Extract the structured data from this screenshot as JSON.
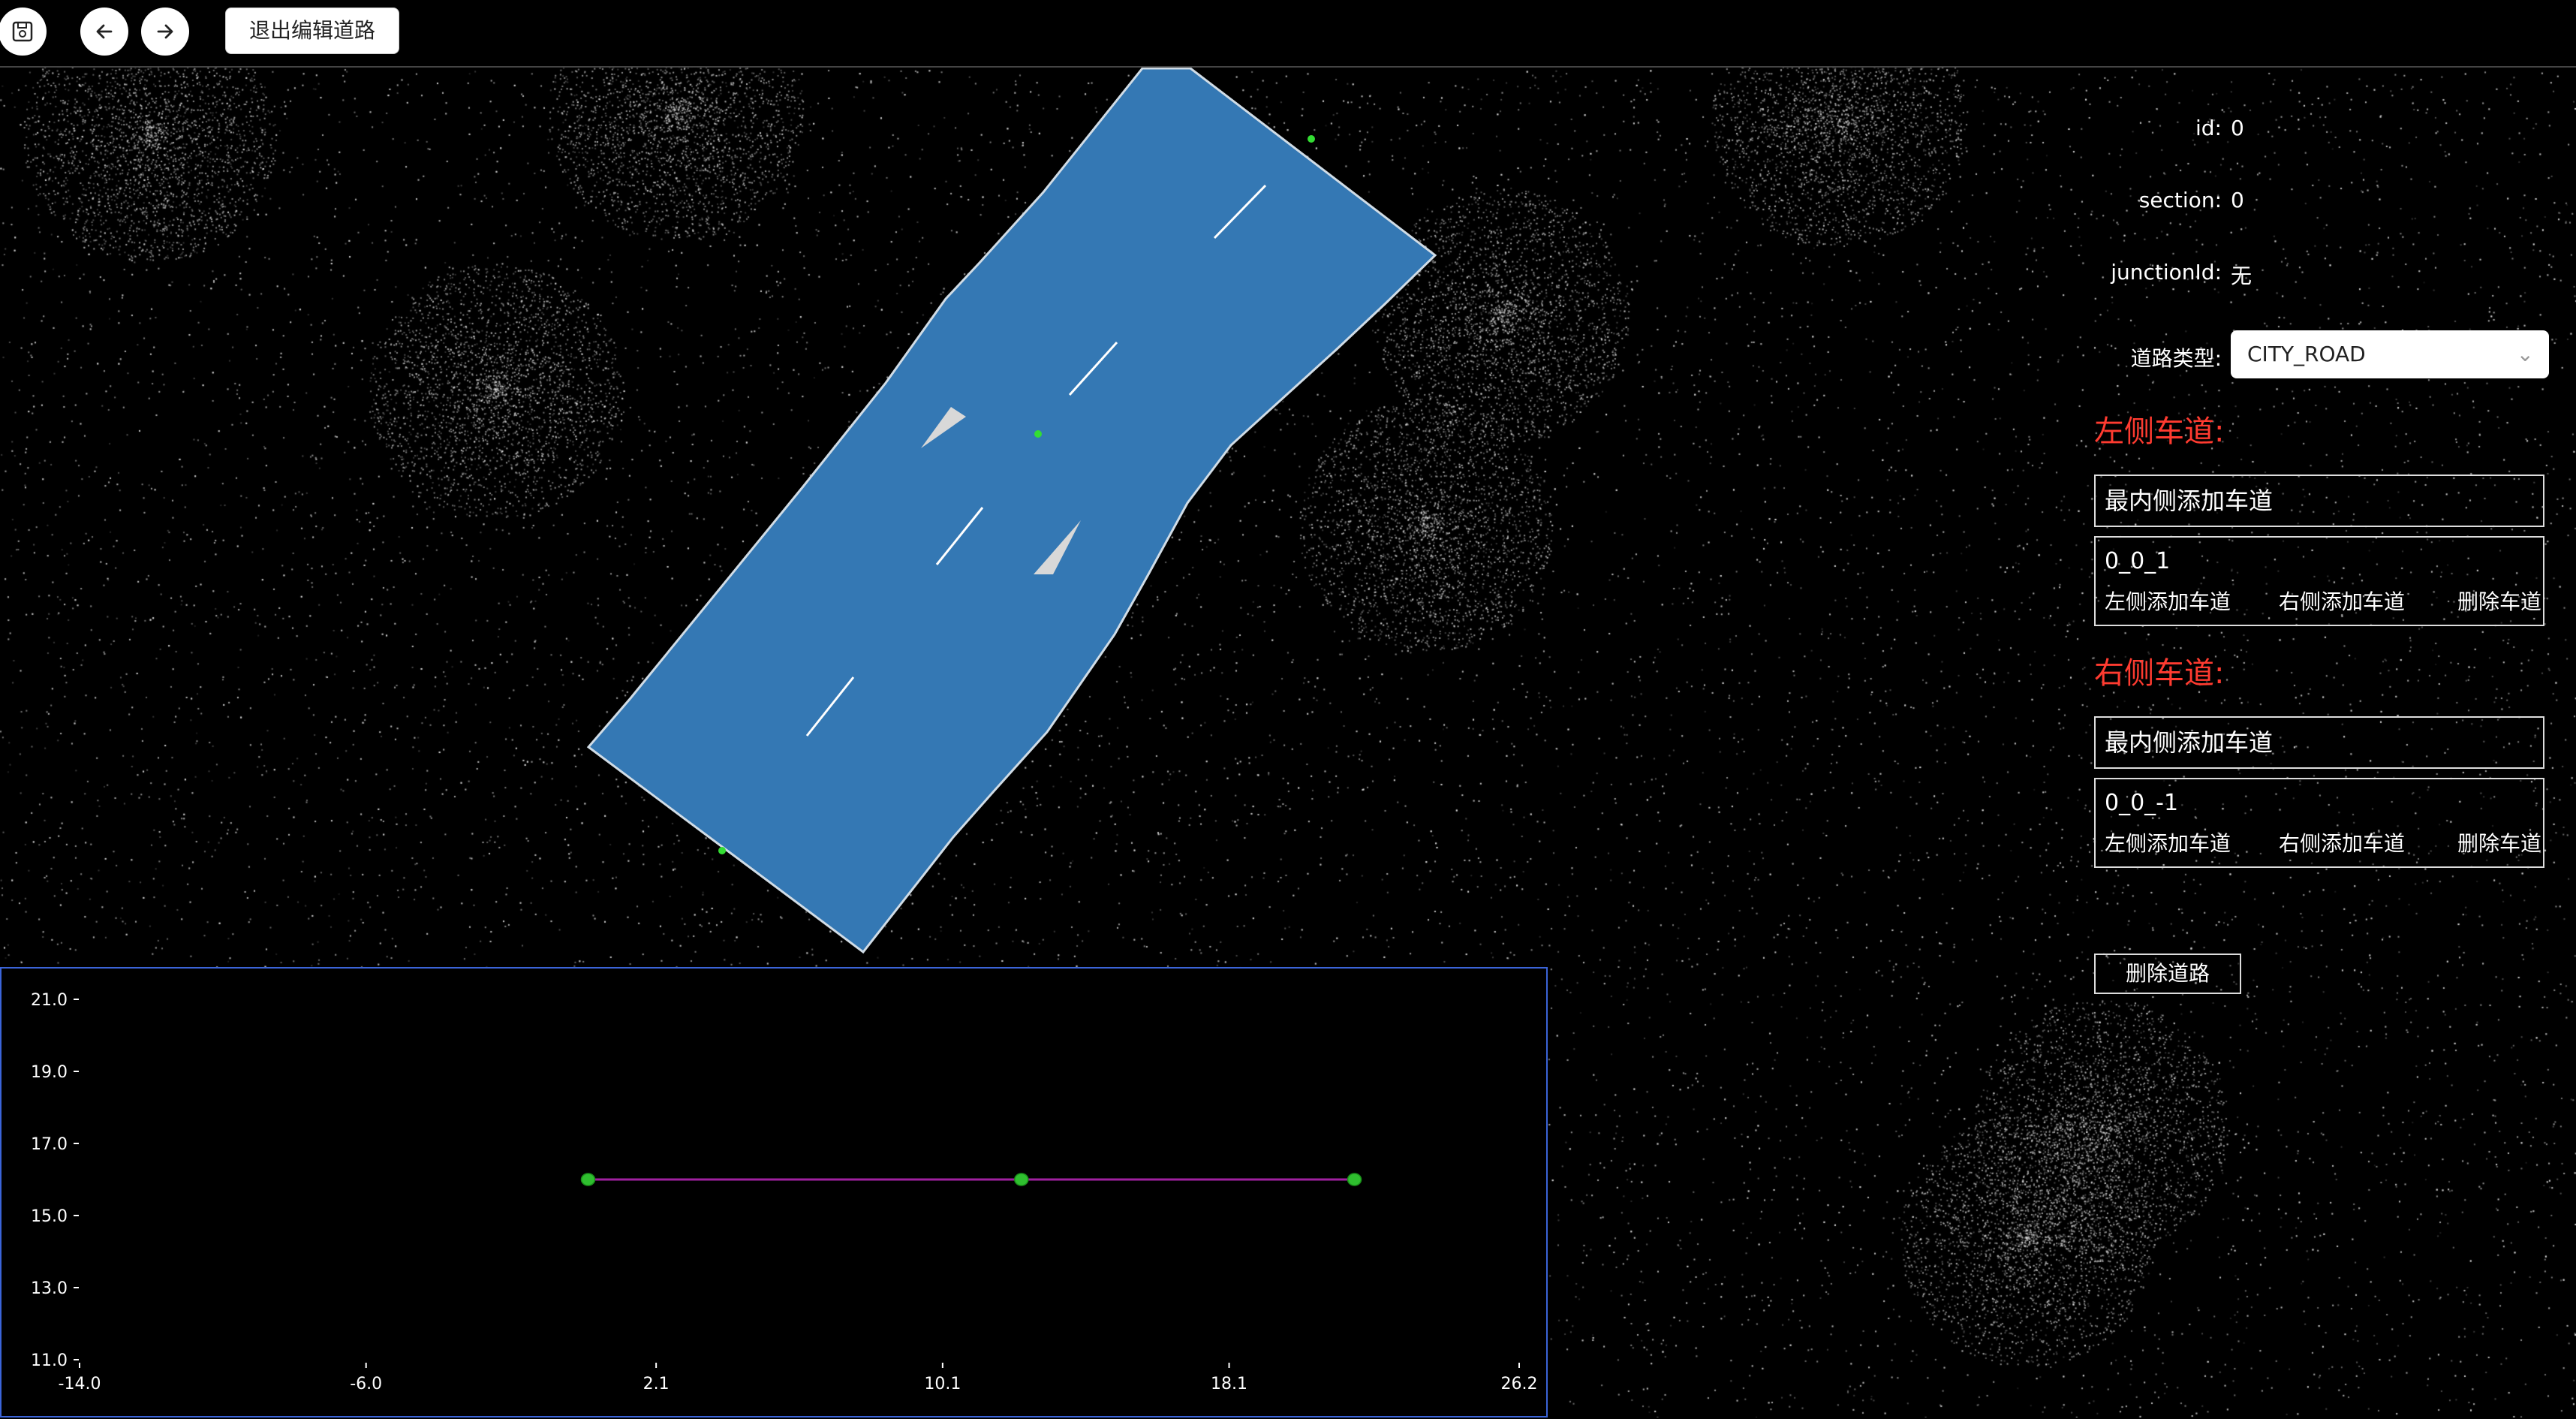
{
  "toolbar": {
    "save_icon": "save-icon",
    "undo_icon": "arrow-left-icon",
    "redo_icon": "arrow-right-icon",
    "exit_label": "退出编辑道路"
  },
  "road": {
    "color": "#3478b4",
    "arrow_color": "#d8d8d8",
    "marker_color": "#22cc22"
  },
  "panel": {
    "id_label": "id:",
    "id_value": "0",
    "section_label": "section:",
    "section_value": "0",
    "junction_label": "junctionId:",
    "junction_value": "无",
    "road_type_label": "道路类型:",
    "road_type_value": "CITY_ROAD",
    "left_title": "左侧车道:",
    "left_add_inner": "最内侧添加车道",
    "left_lanes": [
      {
        "id": "0_0_1",
        "add_left": "左侧添加车道",
        "add_right": "右侧添加车道",
        "delete": "删除车道"
      }
    ],
    "right_title": "右侧车道:",
    "right_add_inner": "最内侧添加车道",
    "right_lanes": [
      {
        "id": "0_0_-1",
        "add_left": "左侧添加车道",
        "add_right": "右侧添加车道",
        "delete": "删除车道"
      }
    ],
    "delete_road": "删除道路",
    "accent_color": "#ff3b30"
  },
  "chart_data": {
    "type": "line",
    "x_ticks": [
      "-14.0",
      "-6.0",
      "2.1",
      "10.1",
      "18.1",
      "26.2"
    ],
    "y_ticks": [
      "21.0",
      "19.0",
      "17.0",
      "15.0",
      "13.0",
      "11.0"
    ],
    "xlim": [
      -14.0,
      26.2
    ],
    "ylim": [
      11.0,
      21.0
    ],
    "series": [
      {
        "x": [
          0.2,
          12.3,
          21.6
        ],
        "y": [
          16.0,
          16.0,
          16.0
        ]
      }
    ],
    "line_color": "#a020a0",
    "point_color": "#2fbf2f",
    "border_color": "#3b64d8"
  }
}
